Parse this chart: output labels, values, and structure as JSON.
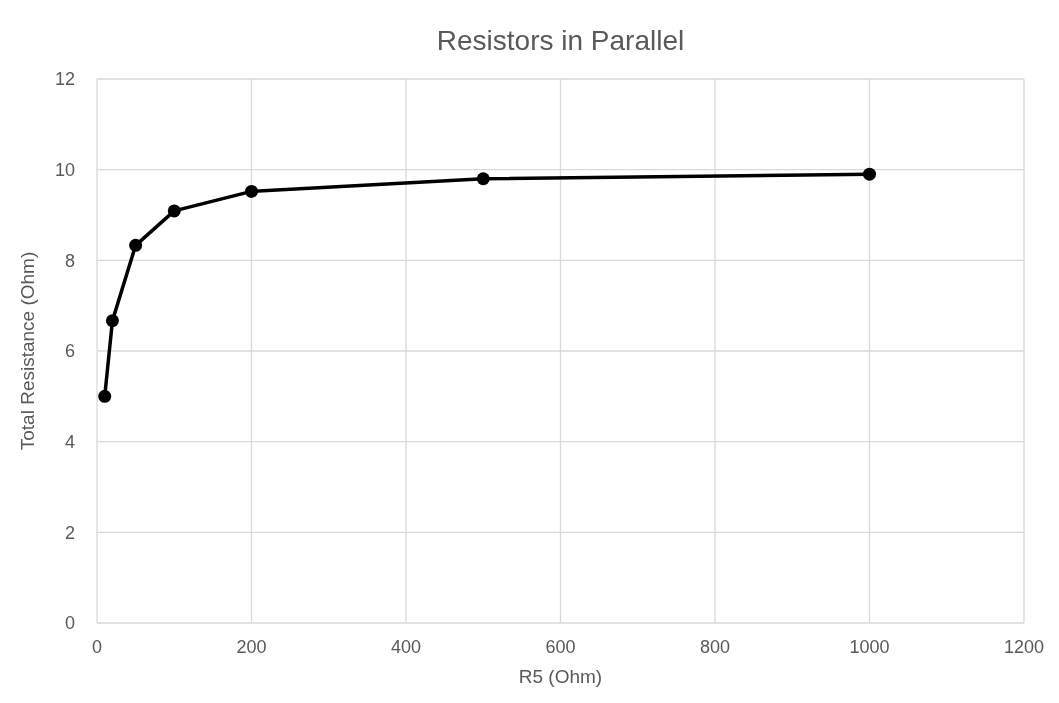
{
  "chart_data": {
    "type": "line",
    "title": "Resistors in Parallel",
    "xlabel": "R5 (Ohm)",
    "ylabel": "Total Resistance (Ohm)",
    "x": [
      10,
      20,
      50,
      100,
      200,
      500,
      1000
    ],
    "series": [
      {
        "color": "#000000",
        "values": [
          5,
          6.67,
          8.33,
          9.09,
          9.52,
          9.8,
          9.9
        ]
      }
    ],
    "xlim": [
      0,
      1200
    ],
    "xticks": [
      0,
      200,
      400,
      600,
      800,
      1000,
      1200
    ],
    "ylim": [
      0,
      12
    ],
    "yticks": [
      0,
      2,
      4,
      6,
      8,
      10,
      12
    ],
    "grid": true,
    "marker": "circle",
    "line_style": "solid"
  }
}
